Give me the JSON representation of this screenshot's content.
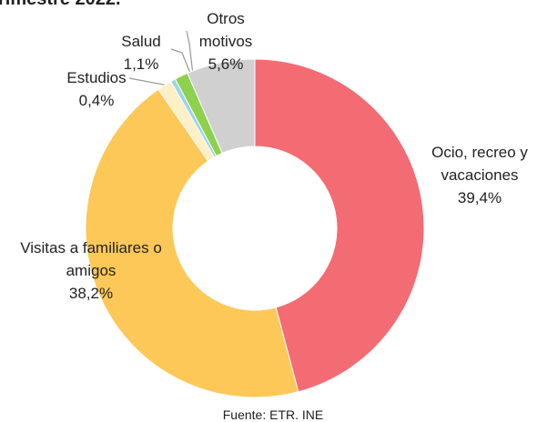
{
  "chart_data": {
    "type": "donut",
    "subtitle": "rimestre 2022.",
    "source": "Fuente: ETR. INE",
    "categories": [
      "Ocio, recreo y vacaciones",
      "Visitas a familiares o amigos",
      null,
      "Estudios",
      "Salud",
      "Otros motivos"
    ],
    "values": [
      39.4,
      38.2,
      1.2,
      0.4,
      1.1,
      5.6
    ],
    "value_labels": [
      "39,4%",
      "38,2%",
      null,
      "0,4%",
      "1,1%",
      "5,6%"
    ],
    "colors": [
      "#f36b73",
      "#fdc857",
      "#fdefc6",
      "#9fd4e8",
      "#8dd14f",
      "#d1d0d0"
    ]
  }
}
